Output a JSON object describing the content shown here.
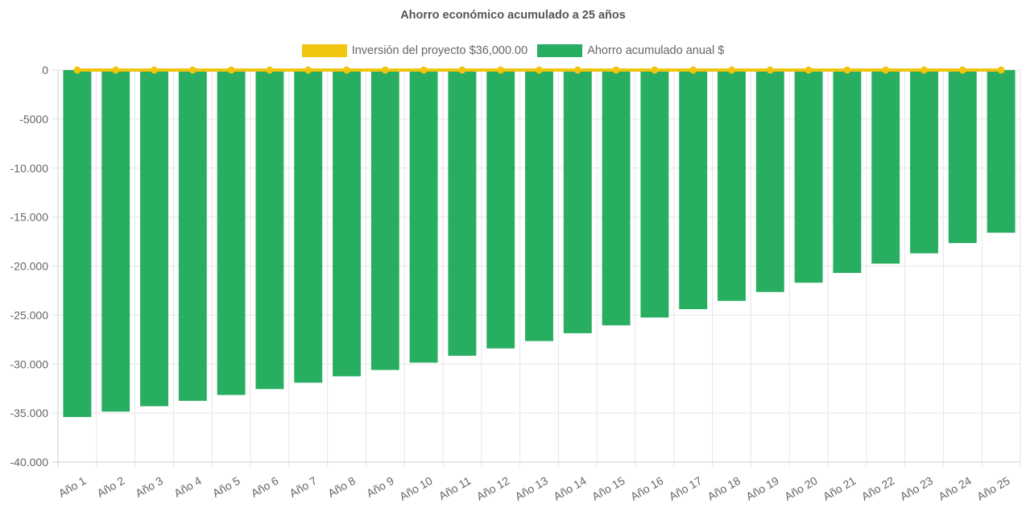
{
  "chart_data": {
    "type": "bar",
    "title": "Ahorro económico acumulado a 25 años",
    "categories": [
      "Año 1",
      "Año 2",
      "Año 3",
      "Año 4",
      "Año 5",
      "Año 6",
      "Año 7",
      "Año 8",
      "Año 9",
      "Año 10",
      "Año 11",
      "Año 12",
      "Año 13",
      "Año 14",
      "Año 15",
      "Año 16",
      "Año 17",
      "Año 18",
      "Año 19",
      "Año 20",
      "Año 21",
      "Año 22",
      "Año 23",
      "Año 24",
      "Año 25"
    ],
    "series": [
      {
        "name": "Inversión del proyecto $36,000.00",
        "type": "line",
        "color": "#f1c40f",
        "values": [
          0,
          0,
          0,
          0,
          0,
          0,
          0,
          0,
          0,
          0,
          0,
          0,
          0,
          0,
          0,
          0,
          0,
          0,
          0,
          0,
          0,
          0,
          0,
          0,
          0
        ]
      },
      {
        "name": "Ahorro acumulado anual $",
        "type": "bar",
        "color": "#27ae60",
        "values": [
          -35400,
          -34850,
          -34300,
          -33750,
          -33150,
          -32550,
          -31900,
          -31250,
          -30600,
          -29850,
          -29150,
          -28400,
          -27650,
          -26850,
          -26050,
          -25250,
          -24400,
          -23550,
          -22650,
          -21700,
          -20700,
          -19750,
          -18700,
          -17650,
          -16600
        ]
      }
    ],
    "ylim": [
      -40000,
      0
    ],
    "yticks": [
      {
        "value": 0,
        "label": "0"
      },
      {
        "value": -5000,
        "label": "-5000"
      },
      {
        "value": -10000,
        "label": "-10.000"
      },
      {
        "value": -15000,
        "label": "-15.000"
      },
      {
        "value": -20000,
        "label": "-20.000"
      },
      {
        "value": -25000,
        "label": "-25.000"
      },
      {
        "value": -30000,
        "label": "-30.000"
      },
      {
        "value": -35000,
        "label": "-35.000"
      },
      {
        "value": -40000,
        "label": "-40.000"
      }
    ],
    "grid": true,
    "legend_position": "top"
  }
}
